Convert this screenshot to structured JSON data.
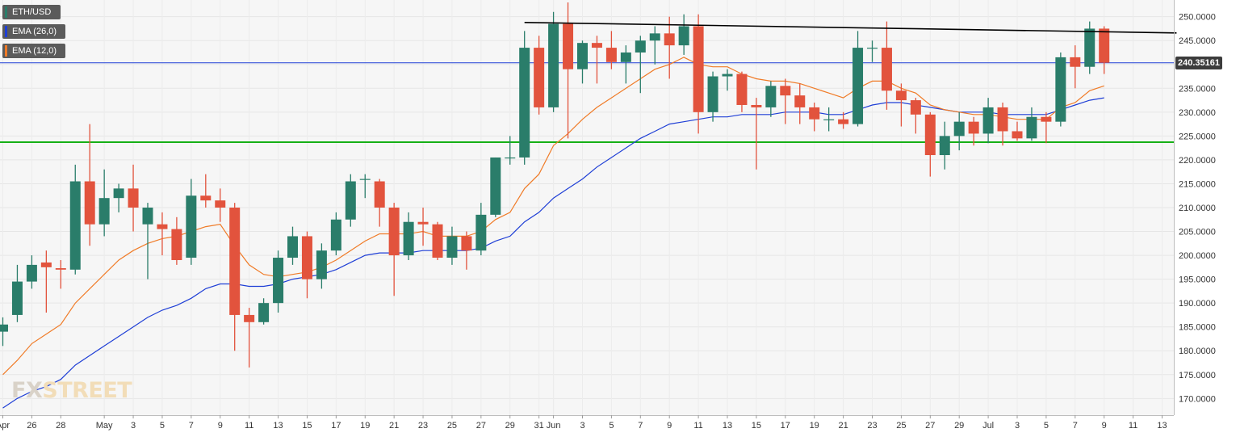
{
  "chart_data": {
    "type": "candlestick",
    "symbol": "ETH/USD",
    "legend": [
      {
        "label": "ETH/USD",
        "color": "#2a7d6a"
      },
      {
        "label": "EMA (26,0)",
        "color": "#1f3fd6"
      },
      {
        "label": "EMA (12,0)",
        "color": "#f07b27"
      }
    ],
    "ylim": [
      166.5,
      253.5
    ],
    "y_ticks": [
      "170.0000",
      "175.0000",
      "180.0000",
      "185.0000",
      "190.0000",
      "195.0000",
      "200.0000",
      "205.0000",
      "210.0000",
      "215.0000",
      "220.0000",
      "225.0000",
      "230.0000",
      "235.0000",
      "240.0000",
      "245.0000",
      "250.0000"
    ],
    "x_ticks": [
      "Apr",
      "26",
      "28",
      "May",
      "3",
      "5",
      "7",
      "9",
      "11",
      "13",
      "15",
      "17",
      "19",
      "21",
      "23",
      "25",
      "27",
      "29",
      "31",
      "Jun",
      "3",
      "5",
      "7",
      "9",
      "11",
      "13",
      "15",
      "17",
      "19",
      "21",
      "23",
      "25",
      "27",
      "29",
      "Jul",
      "3",
      "5",
      "7",
      "9",
      "11",
      "13"
    ],
    "current_price": {
      "label": "240.35161",
      "value": 240.35
    },
    "support_line": {
      "value": 223.7
    },
    "resistance_line": {
      "from": {
        "x": "May 30",
        "y": 248.8
      },
      "to": {
        "x": "Jul 14",
        "y": 246.6
      }
    },
    "candles": [
      {
        "date": "Apr 24",
        "o": 184,
        "h": 187,
        "l": 181,
        "c": 185.5
      },
      {
        "date": "Apr 25",
        "o": 187.5,
        "h": 198,
        "l": 186,
        "c": 194.5
      },
      {
        "date": "Apr 26",
        "o": 194.5,
        "h": 200,
        "l": 193,
        "c": 198
      },
      {
        "date": "Apr 27",
        "o": 198.5,
        "h": 201,
        "l": 188,
        "c": 197.5
      },
      {
        "date": "Apr 28",
        "o": 197.3,
        "h": 199,
        "l": 193,
        "c": 197
      },
      {
        "date": "Apr 29",
        "o": 197,
        "h": 219,
        "l": 196,
        "c": 215.5
      },
      {
        "date": "Apr 30",
        "o": 215.5,
        "h": 227.5,
        "l": 202,
        "c": 206.5
      },
      {
        "date": "May 1",
        "o": 206.5,
        "h": 218,
        "l": 204,
        "c": 212
      },
      {
        "date": "May 2",
        "o": 212,
        "h": 215,
        "l": 209,
        "c": 214
      },
      {
        "date": "May 3",
        "o": 214,
        "h": 219,
        "l": 205,
        "c": 210
      },
      {
        "date": "May 4",
        "o": 206.5,
        "h": 211,
        "l": 195,
        "c": 210
      },
      {
        "date": "May 5",
        "o": 206.5,
        "h": 209,
        "l": 200,
        "c": 205.5
      },
      {
        "date": "May 6",
        "o": 205.5,
        "h": 208,
        "l": 198,
        "c": 199
      },
      {
        "date": "May 7",
        "o": 199.5,
        "h": 216,
        "l": 198,
        "c": 212.5
      },
      {
        "date": "May 8",
        "o": 212.5,
        "h": 217,
        "l": 210,
        "c": 211.5
      },
      {
        "date": "May 9",
        "o": 211.5,
        "h": 214,
        "l": 207,
        "c": 210
      },
      {
        "date": "May 10",
        "o": 210,
        "h": 211,
        "l": 180,
        "c": 187.5
      },
      {
        "date": "May 11",
        "o": 187.5,
        "h": 189,
        "l": 176.5,
        "c": 186
      },
      {
        "date": "May 12",
        "o": 186,
        "h": 191,
        "l": 185.5,
        "c": 190
      },
      {
        "date": "May 13",
        "o": 190,
        "h": 201,
        "l": 188,
        "c": 199.5
      },
      {
        "date": "May 14",
        "o": 199.5,
        "h": 206,
        "l": 198,
        "c": 204
      },
      {
        "date": "May 15",
        "o": 204,
        "h": 205,
        "l": 191,
        "c": 195
      },
      {
        "date": "May 16",
        "o": 195,
        "h": 202.5,
        "l": 193,
        "c": 201
      },
      {
        "date": "May 17",
        "o": 201,
        "h": 209,
        "l": 200,
        "c": 207.5
      },
      {
        "date": "May 18",
        "o": 207.5,
        "h": 217,
        "l": 206,
        "c": 215.5
      },
      {
        "date": "May 19",
        "o": 216,
        "h": 217,
        "l": 212,
        "c": 216
      },
      {
        "date": "May 20",
        "o": 215.5,
        "h": 216,
        "l": 206,
        "c": 210
      },
      {
        "date": "May 21",
        "o": 210,
        "h": 211,
        "l": 191.5,
        "c": 200
      },
      {
        "date": "May 22",
        "o": 200,
        "h": 209,
        "l": 199,
        "c": 207
      },
      {
        "date": "May 23",
        "o": 207,
        "h": 210,
        "l": 202,
        "c": 206.5
      },
      {
        "date": "May 24",
        "o": 206.5,
        "h": 207,
        "l": 199,
        "c": 199.5
      },
      {
        "date": "May 25",
        "o": 199.5,
        "h": 206,
        "l": 198,
        "c": 204
      },
      {
        "date": "May 26",
        "o": 204,
        "h": 205,
        "l": 197,
        "c": 201
      },
      {
        "date": "May 27",
        "o": 201,
        "h": 211,
        "l": 200,
        "c": 208.5
      },
      {
        "date": "May 28",
        "o": 208.5,
        "h": 220.5,
        "l": 208,
        "c": 220.5
      },
      {
        "date": "May 29",
        "o": 220.5,
        "h": 225,
        "l": 219,
        "c": 220.5
      },
      {
        "date": "May 30",
        "o": 220.5,
        "h": 247,
        "l": 219,
        "c": 243.5
      },
      {
        "date": "May 31",
        "o": 243.5,
        "h": 246,
        "l": 229.5,
        "c": 231
      },
      {
        "date": "Jun 1",
        "o": 231,
        "h": 251,
        "l": 230,
        "c": 248.5
      },
      {
        "date": "Jun 2",
        "o": 248.5,
        "h": 253,
        "l": 224.5,
        "c": 239
      },
      {
        "date": "Jun 3",
        "o": 239,
        "h": 245,
        "l": 236,
        "c": 244.5
      },
      {
        "date": "Jun 4",
        "o": 244.5,
        "h": 246,
        "l": 236,
        "c": 243.5
      },
      {
        "date": "Jun 5",
        "o": 243.5,
        "h": 247,
        "l": 239,
        "c": 240.5
      },
      {
        "date": "Jun 6",
        "o": 240.5,
        "h": 244,
        "l": 236,
        "c": 242.5
      },
      {
        "date": "Jun 7",
        "o": 242.5,
        "h": 246,
        "l": 234,
        "c": 245
      },
      {
        "date": "Jun 8",
        "o": 245,
        "h": 248,
        "l": 240,
        "c": 246.5
      },
      {
        "date": "Jun 9",
        "o": 246.5,
        "h": 250,
        "l": 237,
        "c": 244
      },
      {
        "date": "Jun 10",
        "o": 244,
        "h": 250.5,
        "l": 242,
        "c": 248
      },
      {
        "date": "Jun 11",
        "o": 248,
        "h": 250.5,
        "l": 225.5,
        "c": 230
      },
      {
        "date": "Jun 12",
        "o": 230,
        "h": 238.5,
        "l": 228,
        "c": 237.5
      },
      {
        "date": "Jun 13",
        "o": 237.5,
        "h": 239,
        "l": 234.5,
        "c": 238
      },
      {
        "date": "Jun 14",
        "o": 238,
        "h": 238.5,
        "l": 230,
        "c": 231.5
      },
      {
        "date": "Jun 15",
        "o": 231.5,
        "h": 233,
        "l": 218,
        "c": 231
      },
      {
        "date": "Jun 16",
        "o": 231,
        "h": 236.5,
        "l": 229,
        "c": 235.5
      },
      {
        "date": "Jun 17",
        "o": 235.5,
        "h": 237,
        "l": 227.5,
        "c": 233.5
      },
      {
        "date": "Jun 18",
        "o": 233.5,
        "h": 236,
        "l": 227.5,
        "c": 231
      },
      {
        "date": "Jun 19",
        "o": 231,
        "h": 232,
        "l": 226,
        "c": 228.5
      },
      {
        "date": "Jun 20",
        "o": 228.5,
        "h": 231,
        "l": 226,
        "c": 228.5
      },
      {
        "date": "Jun 21",
        "o": 228.5,
        "h": 230,
        "l": 226.5,
        "c": 227.5
      },
      {
        "date": "Jun 22",
        "o": 227.5,
        "h": 247,
        "l": 227,
        "c": 243.5
      },
      {
        "date": "Jun 23",
        "o": 243.5,
        "h": 245,
        "l": 240.5,
        "c": 243.5
      },
      {
        "date": "Jun 24",
        "o": 243.5,
        "h": 249,
        "l": 230.5,
        "c": 234.5
      },
      {
        "date": "Jun 25",
        "o": 234.5,
        "h": 236,
        "l": 227,
        "c": 232.5
      },
      {
        "date": "Jun 26",
        "o": 232.5,
        "h": 233,
        "l": 225.5,
        "c": 229.5
      },
      {
        "date": "Jun 27",
        "o": 229.5,
        "h": 230,
        "l": 216.5,
        "c": 221
      },
      {
        "date": "Jun 28",
        "o": 221,
        "h": 228,
        "l": 218,
        "c": 225
      },
      {
        "date": "Jun 29",
        "o": 225,
        "h": 230,
        "l": 222,
        "c": 228
      },
      {
        "date": "Jun 30",
        "o": 228,
        "h": 229,
        "l": 223,
        "c": 225.5
      },
      {
        "date": "Jul 1",
        "o": 225.5,
        "h": 233,
        "l": 223.5,
        "c": 231
      },
      {
        "date": "Jul 2",
        "o": 231,
        "h": 232,
        "l": 223,
        "c": 226
      },
      {
        "date": "Jul 3",
        "o": 226,
        "h": 228,
        "l": 224,
        "c": 224.5
      },
      {
        "date": "Jul 4",
        "o": 224.5,
        "h": 231,
        "l": 224,
        "c": 229
      },
      {
        "date": "Jul 5",
        "o": 229,
        "h": 230,
        "l": 223.5,
        "c": 228
      },
      {
        "date": "Jul 6",
        "o": 228,
        "h": 242.5,
        "l": 227,
        "c": 241.5
      },
      {
        "date": "Jul 7",
        "o": 241.5,
        "h": 244,
        "l": 235,
        "c": 239.5
      },
      {
        "date": "Jul 8",
        "o": 239.5,
        "h": 249,
        "l": 238,
        "c": 247.5
      },
      {
        "date": "Jul 9",
        "o": 247.5,
        "h": 248,
        "l": 238,
        "c": 240.35
      }
    ],
    "ema12": [
      175,
      178,
      181.5,
      183.5,
      185.5,
      190,
      193,
      196,
      199,
      201,
      202.5,
      203.5,
      204,
      205,
      206,
      206.5,
      202,
      198,
      196,
      195.5,
      196,
      196.5,
      197.5,
      199,
      201,
      203,
      204.5,
      204.5,
      204.5,
      205,
      204,
      204,
      204,
      205,
      207.5,
      209,
      214,
      217,
      223,
      225.5,
      228.5,
      231,
      233,
      235,
      237,
      239,
      240,
      241.5,
      240,
      239.5,
      239.5,
      238,
      237,
      236.5,
      236.5,
      236,
      235,
      234,
      233,
      235,
      236.5,
      236.5,
      235,
      234,
      231.5,
      230.5,
      230,
      229.5,
      229.5,
      229,
      228.5,
      228.5,
      228.5,
      231,
      232,
      234.5,
      235.5
    ],
    "ema26": [
      168,
      170,
      171.5,
      172.5,
      174,
      177,
      179,
      181,
      183,
      185,
      187,
      188.5,
      189.5,
      191,
      193,
      194,
      194,
      193.5,
      193.5,
      194,
      195,
      195.5,
      196,
      197,
      198.5,
      200,
      200.5,
      200.5,
      200.5,
      201,
      201,
      201,
      201,
      201.5,
      203,
      204,
      207,
      209,
      212,
      214,
      216,
      218.5,
      220.5,
      222.5,
      224.5,
      226,
      227.5,
      228,
      228.5,
      229,
      229,
      229.5,
      229.5,
      229.5,
      230,
      230,
      230,
      229.5,
      229.5,
      230.5,
      231.5,
      232,
      232,
      231.5,
      231,
      230.5,
      230,
      230,
      230,
      229.5,
      229.5,
      229.5,
      229.5,
      230.5,
      231.5,
      232.5,
      233
    ]
  },
  "watermark": {
    "part1": "FX",
    "part2": "STREET",
    "color1": "#d9d2c8",
    "color2": "#f2ddb8"
  },
  "colors": {
    "up": "#2a7d6a",
    "down": "#e2533d",
    "ema12": "#f07b27",
    "ema26": "#1f3fd6",
    "support": "#16b016",
    "resistance": "#000000",
    "price_line": "#1f3fd6"
  }
}
